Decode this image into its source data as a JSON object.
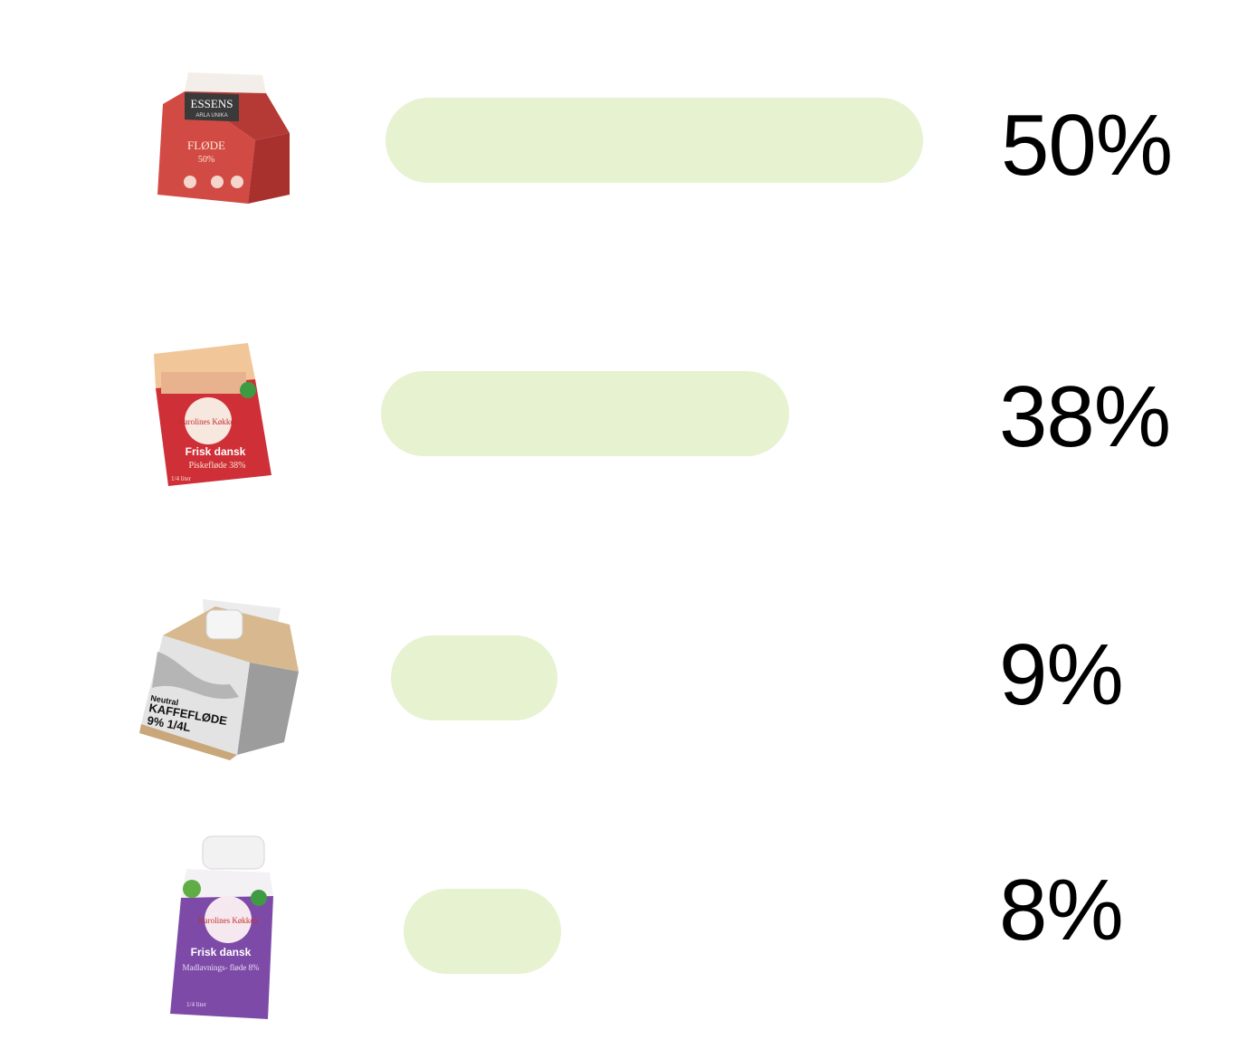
{
  "colors": {
    "bar": "#e6f2d0"
  },
  "chart_data": {
    "type": "bar",
    "orientation": "horizontal",
    "categories": [
      "FLØDE 50%",
      "Frisk dansk Piskefløde 38%",
      "Neutral KAFFEFLØDE 9% 1/4L",
      "Frisk dansk Madlavningsfløde 8%"
    ],
    "values": [
      50,
      38,
      9,
      8
    ],
    "labels": [
      "50%",
      "38%",
      "9%",
      "8%"
    ],
    "xlim": [
      0,
      50
    ],
    "grid": false
  },
  "products": [
    {
      "icon": "red-cream-carton-icon",
      "brand": "ESSENS",
      "sub": "ARLA UNIKA",
      "name": "FLØDE",
      "detail": "50%",
      "color": "#c9443f"
    },
    {
      "icon": "red-whipping-cream-carton-icon",
      "brand": "Karolines Køkken",
      "name": "Frisk dansk",
      "detail": "Piskefløde 38%",
      "size": "1/4 liter",
      "color": "#c8343a"
    },
    {
      "icon": "beige-coffee-cream-carton-icon",
      "line1": "Neutral",
      "line2": "KAFFEFLØDE",
      "line3": "9% 1/4L",
      "color": "#c9a77a"
    },
    {
      "icon": "purple-cooking-cream-bottle-icon",
      "brand": "Karolines Køkken",
      "name": "Frisk dansk",
      "detail": "Madlavnings- fløde 8%",
      "size": "1/4 liter",
      "color": "#7a4ba6"
    }
  ]
}
